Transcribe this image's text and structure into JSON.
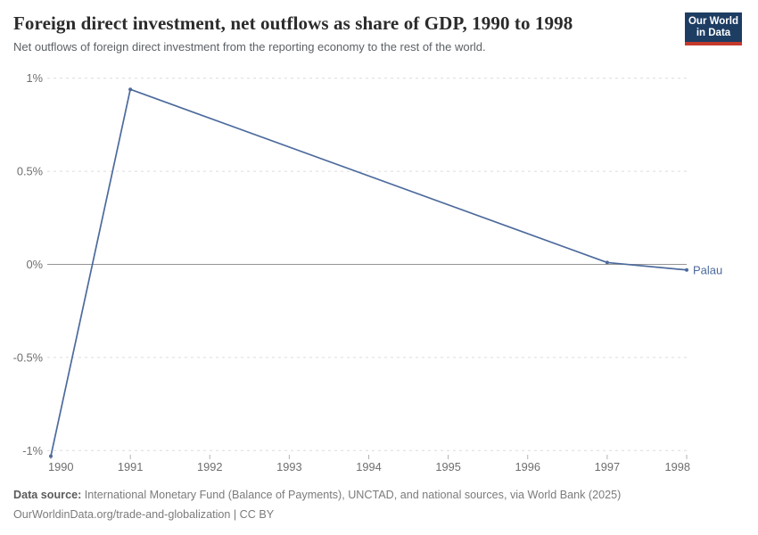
{
  "header": {
    "title": "Foreign direct investment, net outflows as share of GDP, 1990 to 1998",
    "subtitle": "Net outflows of foreign direct investment from the reporting economy to the rest of the world.",
    "logo": {
      "line1": "Our World",
      "line2": "in Data"
    }
  },
  "chart_data": {
    "type": "line",
    "title": "Foreign direct investment, net outflows as share of GDP, 1990 to 1998",
    "subtitle": "Net outflows of foreign direct investment from the reporting economy to the rest of the world.",
    "xlabel": "",
    "ylabel": "",
    "xlim": [
      1990,
      1998
    ],
    "ylim": [
      -1.05,
      1.0
    ],
    "grid": "horizontal dashed gridlines; solid zero line",
    "legend_position": "end-of-line entity label",
    "series": [
      {
        "name": "Palau",
        "color": "#4c6a9c",
        "x": [
          1990,
          1991,
          1997,
          1998
        ],
        "y": [
          -1.03,
          0.94,
          0.01,
          -0.03
        ]
      }
    ],
    "y_ticks": [
      {
        "value": 1,
        "label": "1%"
      },
      {
        "value": 0.5,
        "label": "0.5%"
      },
      {
        "value": 0,
        "label": "0%"
      },
      {
        "value": -0.5,
        "label": "-0.5%"
      },
      {
        "value": -1,
        "label": "-1%"
      }
    ],
    "x_ticks": [
      {
        "value": 1990,
        "label": "1990"
      },
      {
        "value": 1991,
        "label": "1991"
      },
      {
        "value": 1992,
        "label": "1992"
      },
      {
        "value": 1993,
        "label": "1993"
      },
      {
        "value": 1994,
        "label": "1994"
      },
      {
        "value": 1995,
        "label": "1995"
      },
      {
        "value": 1996,
        "label": "1996"
      },
      {
        "value": 1997,
        "label": "1997"
      },
      {
        "value": 1998,
        "label": "1998"
      }
    ]
  },
  "footer": {
    "data_source_label": "Data source:",
    "data_source_text": "International Monetary Fund (Balance of Payments), UNCTAD, and national sources, via World Bank (2025)",
    "link_line": "OurWorldinData.org/trade-and-globalization | CC BY"
  },
  "colors": {
    "line": "#4c6a9c",
    "grid": "#dcdcdc",
    "zero_line": "#949494",
    "tick_mark": "#b0b0b0",
    "title": "#2b2b2b",
    "subtitle": "#5b6166",
    "axis_text": "#6e6e6e",
    "footer": "#7b7b7b",
    "footer_label": "#5b5b5b",
    "logo_bg": "#1d3d63",
    "logo_accent": "#c5392d"
  }
}
